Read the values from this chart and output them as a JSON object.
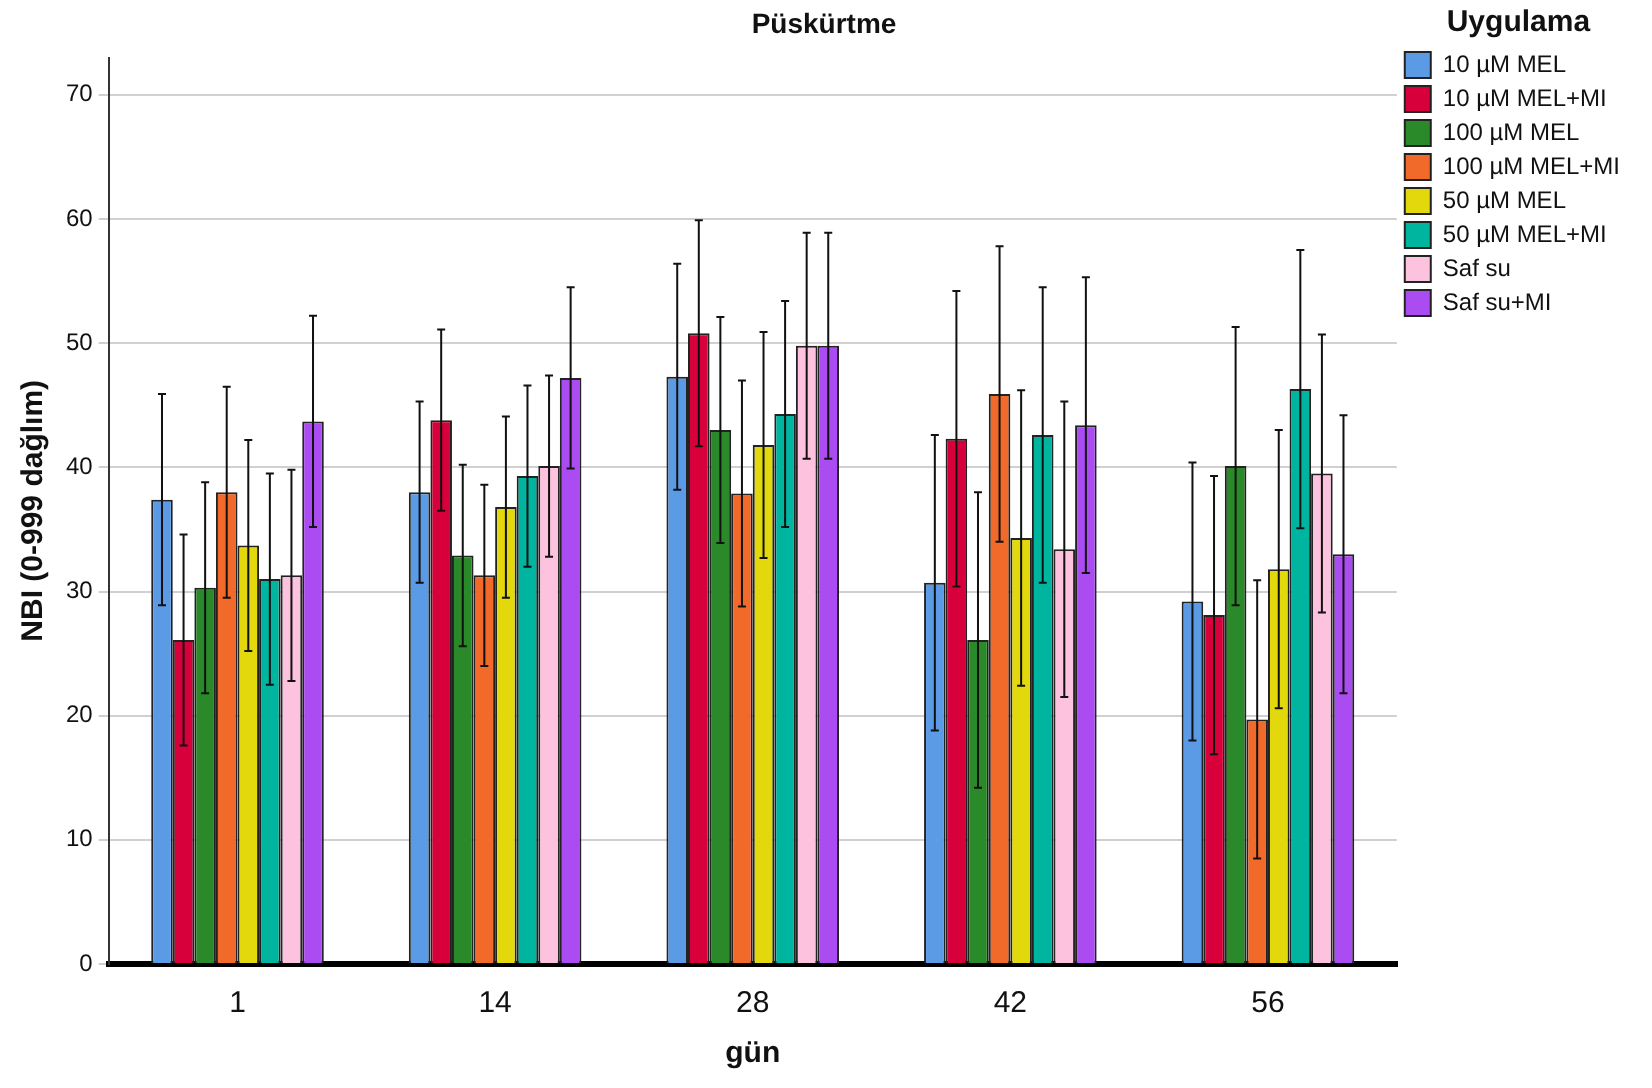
{
  "chart_data": {
    "type": "bar",
    "title": "Püskürtme",
    "xlabel": "gün",
    "ylabel": "NBI (0-999 dağlım)",
    "legend_title": "Uygulama",
    "categories": [
      "1",
      "14",
      "28",
      "42",
      "56"
    ],
    "series": [
      {
        "name": "10 µM MEL",
        "color": "#5b9be6",
        "values": [
          37.4,
          38.0,
          47.3,
          30.7,
          29.2
        ],
        "errors": [
          8.5,
          7.3,
          9.1,
          11.9,
          11.2
        ]
      },
      {
        "name": "10 µM MEL+MI",
        "color": "#d8003a",
        "values": [
          26.1,
          43.8,
          50.8,
          42.3,
          28.1
        ],
        "errors": [
          8.5,
          7.3,
          9.1,
          11.9,
          11.2
        ]
      },
      {
        "name": "100 µM MEL",
        "color": "#2a8a2a",
        "values": [
          30.3,
          32.9,
          43.0,
          26.1,
          40.1
        ],
        "errors": [
          8.5,
          7.3,
          9.1,
          11.9,
          11.2
        ]
      },
      {
        "name": "100 µM MEL+MI",
        "color": "#f26a2a",
        "values": [
          38.0,
          31.3,
          37.9,
          45.9,
          19.7
        ],
        "errors": [
          8.5,
          7.3,
          9.1,
          11.9,
          11.2
        ]
      },
      {
        "name": "50 µM MEL",
        "color": "#e2d80c",
        "values": [
          33.7,
          36.8,
          41.8,
          34.3,
          31.8
        ],
        "errors": [
          8.5,
          7.3,
          9.1,
          11.9,
          11.2
        ]
      },
      {
        "name": "50 µM MEL+MI",
        "color": "#00b5a0",
        "values": [
          31.0,
          39.3,
          44.3,
          42.6,
          46.3
        ],
        "errors": [
          8.5,
          7.3,
          9.1,
          11.9,
          11.2
        ]
      },
      {
        "name": "Saf su",
        "color": "#fcc2de",
        "values": [
          31.3,
          40.1,
          49.8,
          33.4,
          39.5
        ],
        "errors": [
          8.5,
          7.3,
          9.1,
          11.9,
          11.2
        ]
      },
      {
        "name": "Saf su+MI",
        "color": "#ab4cf2",
        "values": [
          43.7,
          47.2,
          49.8,
          43.4,
          33.0
        ],
        "errors": [
          8.5,
          7.3,
          9.1,
          11.9,
          11.2
        ]
      }
    ],
    "ylim": [
      0,
      73
    ],
    "yticks": [
      0,
      10,
      20,
      30,
      40,
      50,
      60,
      70
    ],
    "grid": "y",
    "legend": "right"
  }
}
